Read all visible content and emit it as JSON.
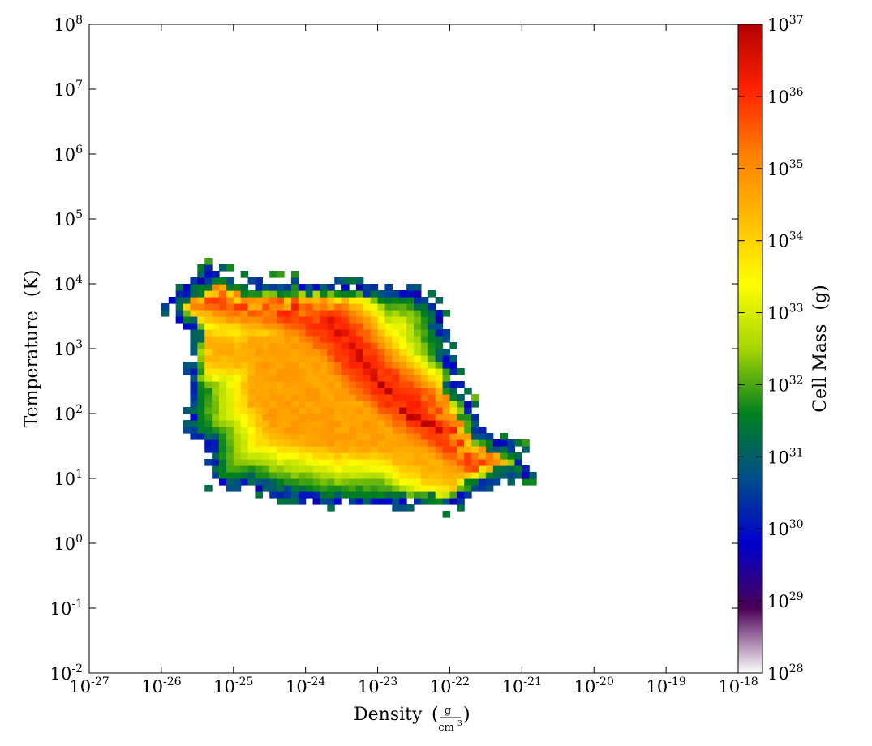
{
  "chart_data": {
    "type": "heatmap",
    "title": "",
    "xlabel": "Density",
    "xlabel_units": {
      "numerator": "g",
      "denominator": "cm",
      "denominator_exponent": "3"
    },
    "ylabel": "Temperature",
    "ylabel_units": "(K)",
    "x_scale": "log",
    "y_scale": "log",
    "xlim": [
      1e-27,
      1e-18
    ],
    "ylim": [
      0.01,
      100000000
    ],
    "x_ticks": [
      {
        "base": "10",
        "exp": "-27",
        "value": 1e-27
      },
      {
        "base": "10",
        "exp": "-26",
        "value": 1e-26
      },
      {
        "base": "10",
        "exp": "-25",
        "value": 1e-25
      },
      {
        "base": "10",
        "exp": "-24",
        "value": 1e-24
      },
      {
        "base": "10",
        "exp": "-23",
        "value": 1e-23
      },
      {
        "base": "10",
        "exp": "-22",
        "value": 1e-22
      },
      {
        "base": "10",
        "exp": "-21",
        "value": 1e-21
      },
      {
        "base": "10",
        "exp": "-20",
        "value": 1e-20
      },
      {
        "base": "10",
        "exp": "-19",
        "value": 1e-19
      },
      {
        "base": "10",
        "exp": "-18",
        "value": 1e-18
      }
    ],
    "y_ticks": [
      {
        "base": "10",
        "exp": "-2",
        "value": 0.01
      },
      {
        "base": "10",
        "exp": "-1",
        "value": 0.1
      },
      {
        "base": "10",
        "exp": "0",
        "value": 1
      },
      {
        "base": "10",
        "exp": "1",
        "value": 10
      },
      {
        "base": "10",
        "exp": "2",
        "value": 100
      },
      {
        "base": "10",
        "exp": "3",
        "value": 1000
      },
      {
        "base": "10",
        "exp": "4",
        "value": 10000
      },
      {
        "base": "10",
        "exp": "5",
        "value": 100000
      },
      {
        "base": "10",
        "exp": "6",
        "value": 1000000
      },
      {
        "base": "10",
        "exp": "7",
        "value": 10000000
      },
      {
        "base": "10",
        "exp": "8",
        "value": 100000000
      }
    ],
    "colorbar": {
      "label": "Cell Mass",
      "units": "(g)",
      "scale": "log",
      "range": [
        1e+28,
        1e+37
      ],
      "colormap": "spectral",
      "ticks": [
        {
          "base": "10",
          "exp": "28"
        },
        {
          "base": "10",
          "exp": "29"
        },
        {
          "base": "10",
          "exp": "30"
        },
        {
          "base": "10",
          "exp": "31"
        },
        {
          "base": "10",
          "exp": "32"
        },
        {
          "base": "10",
          "exp": "33"
        },
        {
          "base": "10",
          "exp": "34"
        },
        {
          "base": "10",
          "exp": "35"
        },
        {
          "base": "10",
          "exp": "36"
        },
        {
          "base": "10",
          "exp": "37"
        }
      ],
      "colors": [
        "#ffffff",
        "#4b0055",
        "#0000cc",
        "#004e8a",
        "#00801e",
        "#a6d600",
        "#ffff00",
        "#ffbb00",
        "#ff7f00",
        "#ff2200",
        "#b40000"
      ]
    },
    "binning": {
      "bins_per_decade": 10
    },
    "distribution_model": {
      "description": "2D mass-weighted phase histogram; region bounded as below, mass values are log10(grams)",
      "boundary": [
        [
          -25.9,
          3.78
        ],
        [
          -25.5,
          4.05
        ],
        [
          -25.3,
          4.25
        ],
        [
          -24.8,
          4.0
        ],
        [
          -24.3,
          4.05
        ],
        [
          -23.0,
          3.95
        ],
        [
          -22.5,
          3.9
        ],
        [
          -22.2,
          3.7
        ],
        [
          -22.05,
          3.1
        ],
        [
          -21.9,
          2.5
        ],
        [
          -21.5,
          1.65
        ],
        [
          -21.0,
          1.45
        ],
        [
          -20.9,
          1.05
        ],
        [
          -21.4,
          0.95
        ],
        [
          -21.8,
          0.7
        ],
        [
          -22.05,
          0.55
        ],
        [
          -22.6,
          0.6
        ],
        [
          -23.6,
          0.6
        ],
        [
          -24.1,
          0.7
        ],
        [
          -24.5,
          0.8
        ],
        [
          -24.8,
          0.9
        ],
        [
          -25.3,
          0.9
        ],
        [
          -25.35,
          1.55
        ],
        [
          -25.6,
          1.7
        ],
        [
          -25.6,
          2.9
        ],
        [
          -25.6,
          3.3
        ],
        [
          -25.9,
          3.55
        ]
      ],
      "ridges": [
        {
          "points": [
            [
              -24.8,
              3.95
            ],
            [
              -24.0,
              3.85
            ],
            [
              -23.3,
              3.0
            ],
            [
              -23.0,
              2.5
            ],
            [
              -22.6,
              2.0
            ],
            [
              -22.2,
              1.8
            ],
            [
              -21.8,
              1.4
            ],
            [
              -21.4,
              1.3
            ],
            [
              -21.0,
              1.1
            ]
          ],
          "peak": 36.9,
          "width": 0.09
        },
        {
          "points": [
            [
              -25.3,
              3.95
            ],
            [
              -24.5,
              3.8
            ],
            [
              -24.0,
              3.6
            ],
            [
              -23.5,
              3.2
            ],
            [
              -23.1,
              2.6
            ],
            [
              -22.6,
              2.15
            ],
            [
              -22.1,
              1.8
            ],
            [
              -21.5,
              1.35
            ],
            [
              -21.0,
              1.15
            ]
          ],
          "peak": 36.1,
          "width": 0.55
        },
        {
          "points": [
            [
              -25.4,
              3.0
            ],
            [
              -24.6,
              2.9
            ],
            [
              -23.9,
              2.6
            ],
            [
              -23.2,
              2.0
            ],
            [
              -22.6,
              1.4
            ],
            [
              -22.2,
              1.2
            ],
            [
              -21.6,
              1.0
            ]
          ],
          "peak": 34.5,
          "width": 0.55
        }
      ],
      "min_value": 29.6,
      "edge_value": 32.0
    }
  }
}
